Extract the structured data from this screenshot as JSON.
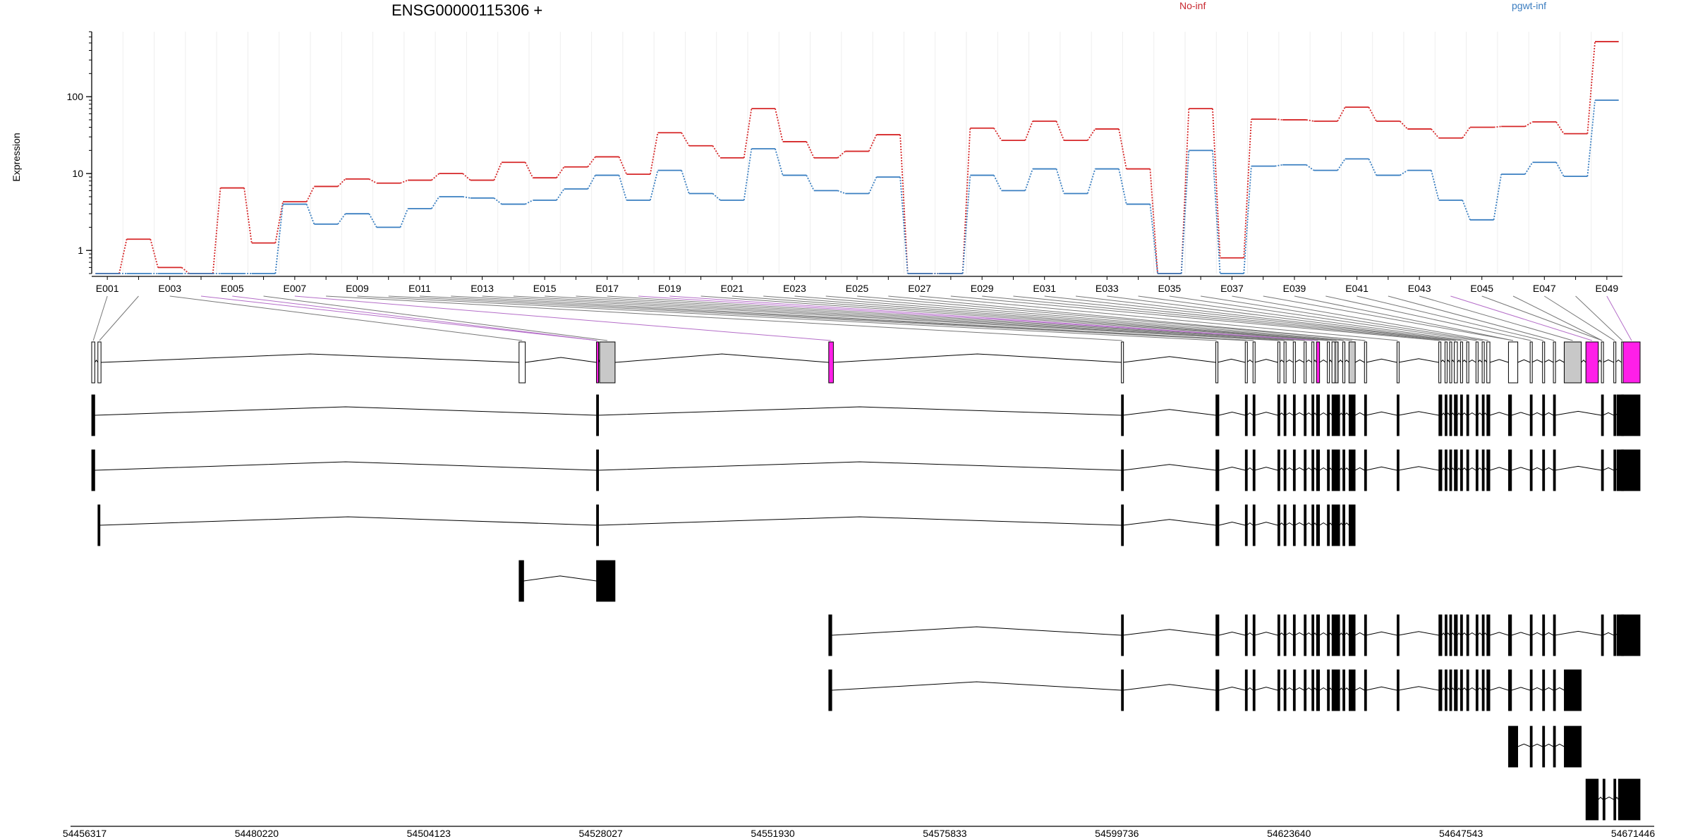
{
  "chart_data": {
    "type": "line",
    "title": "ENSG00000115306 +",
    "ylabel": "Expression",
    "yscale": "log",
    "ylim": [
      0.5,
      700
    ],
    "yticks": [
      1,
      10,
      100
    ],
    "ytick_labels": [
      "1",
      "10",
      "100"
    ],
    "grid": "vertical",
    "legend_placement": "top",
    "exon_labels": [
      "E001",
      "E003",
      "E005",
      "E007",
      "E009",
      "E011",
      "E013",
      "E015",
      "E017",
      "E019",
      "E021",
      "E023",
      "E025",
      "E027",
      "E029",
      "E031",
      "E033",
      "E035",
      "E037",
      "E039",
      "E041",
      "E043",
      "E045",
      "E047",
      "E049"
    ],
    "series": [
      {
        "name": "No-inf",
        "color": "#d62728",
        "values": [
          0.5,
          1.4,
          0.6,
          0.5,
          6.5,
          1.25,
          4.3,
          6.8,
          8.5,
          7.5,
          8.2,
          10,
          8.2,
          14,
          8.8,
          12.2,
          16.5,
          9.8,
          34,
          23,
          16,
          70,
          26,
          16,
          19.5,
          32,
          0.5,
          0.5,
          39,
          27,
          48,
          27,
          38,
          11.5,
          0.5,
          70,
          0.8,
          51,
          50,
          48,
          73,
          48,
          38,
          29,
          40,
          41,
          47,
          33,
          520
        ]
      },
      {
        "name": "pgwt-inf",
        "color": "#3a7fc1",
        "values": [
          0.5,
          0.5,
          0.5,
          0.5,
          0.5,
          0.5,
          4.0,
          2.2,
          3.0,
          2.0,
          3.5,
          5.0,
          4.8,
          4.0,
          4.5,
          6.3,
          9.5,
          4.5,
          11,
          5.5,
          4.5,
          21,
          9.5,
          6.0,
          5.5,
          9.0,
          0.5,
          0.5,
          9.5,
          6.0,
          11.5,
          5.5,
          11.5,
          4.0,
          0.5,
          20,
          0.5,
          12.5,
          13,
          11,
          15.5,
          9.5,
          11,
          4.5,
          2.5,
          9.8,
          14,
          9.2,
          90
        ]
      }
    ],
    "genomic_axis": {
      "tick_labels": [
        "54456317",
        "54480220",
        "54504123",
        "54528027",
        "54551930",
        "54575833",
        "54599736",
        "54623640",
        "54647543",
        "54671446"
      ]
    },
    "highlight_colors": {
      "magenta": "#ff1fe8",
      "gray": "#c8c8c8",
      "black": "#000000"
    }
  }
}
